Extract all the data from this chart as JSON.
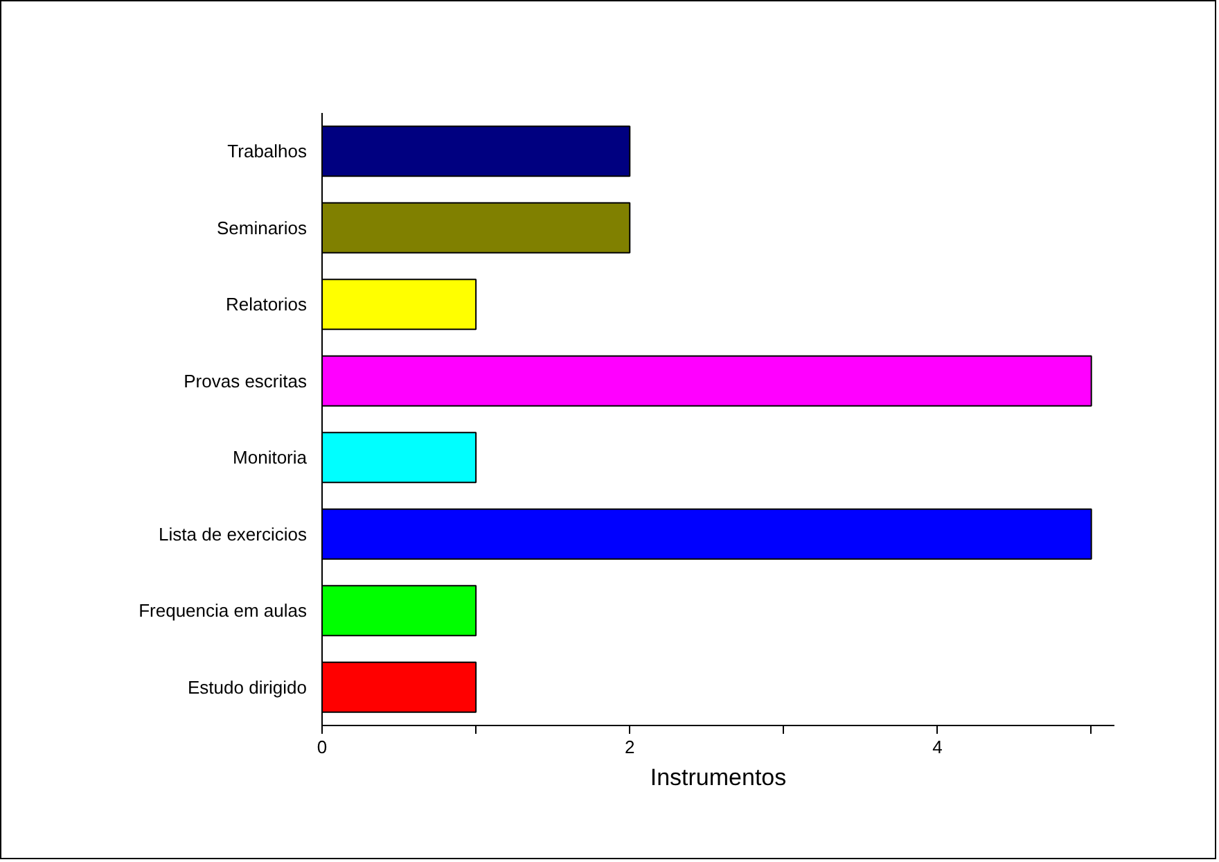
{
  "chart_data": {
    "type": "bar",
    "orientation": "horizontal",
    "xlabel": "Instrumentos",
    "categories": [
      "Trabalhos",
      "Seminarios",
      "Relatorios",
      "Provas escritas",
      "Monitoria",
      "Lista de exercicios",
      "Frequencia em aulas",
      "Estudo dirigido"
    ],
    "values": [
      2,
      2,
      1,
      5,
      1,
      5,
      1,
      1
    ],
    "colors": [
      "#000080",
      "#808000",
      "#ffff00",
      "#ff00ff",
      "#00ffff",
      "#0000ff",
      "#00ff00",
      "#ff0000"
    ],
    "xlim": [
      0,
      5.15
    ],
    "xticks": [
      0,
      {
        "value": 1,
        "label": null
      },
      2,
      {
        "value": 3,
        "label": null
      },
      4,
      {
        "value": 5,
        "label": null
      }
    ],
    "grid": false
  }
}
